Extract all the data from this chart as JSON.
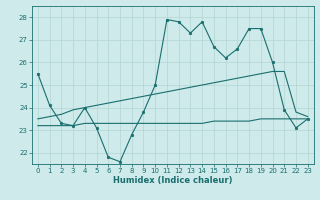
{
  "xlabel": "Humidex (Indice chaleur)",
  "background_color": "#ceeaea",
  "grid_color": "#b8d8d8",
  "line_color": "#1a6e6e",
  "xlim": [
    -0.5,
    23.5
  ],
  "ylim": [
    21.5,
    28.5
  ],
  "yticks": [
    22,
    23,
    24,
    25,
    26,
    27,
    28
  ],
  "xticks": [
    0,
    1,
    2,
    3,
    4,
    5,
    6,
    7,
    8,
    9,
    10,
    11,
    12,
    13,
    14,
    15,
    16,
    17,
    18,
    19,
    20,
    21,
    22,
    23
  ],
  "series1_x": [
    0,
    1,
    2,
    3,
    4,
    5,
    6,
    7,
    8,
    9,
    10,
    11,
    12,
    13,
    14,
    15,
    16,
    17,
    18,
    19,
    20,
    21,
    22,
    23
  ],
  "series1_y": [
    25.5,
    24.1,
    23.3,
    23.2,
    24.0,
    23.1,
    21.8,
    21.6,
    22.8,
    23.8,
    25.0,
    27.9,
    27.8,
    27.3,
    27.8,
    26.7,
    26.2,
    26.6,
    27.5,
    27.5,
    26.0,
    23.9,
    23.1,
    23.5
  ],
  "series2_x": [
    0,
    1,
    2,
    3,
    4,
    5,
    6,
    7,
    8,
    9,
    10,
    11,
    12,
    13,
    14,
    15,
    16,
    17,
    18,
    19,
    20,
    21,
    22,
    23
  ],
  "series2_y": [
    23.2,
    23.2,
    23.2,
    23.2,
    23.3,
    23.3,
    23.3,
    23.3,
    23.3,
    23.3,
    23.3,
    23.3,
    23.3,
    23.3,
    23.3,
    23.4,
    23.4,
    23.4,
    23.4,
    23.5,
    23.5,
    23.5,
    23.5,
    23.5
  ],
  "series3_x": [
    0,
    1,
    2,
    3,
    4,
    5,
    6,
    7,
    8,
    9,
    10,
    11,
    12,
    13,
    14,
    15,
    16,
    17,
    18,
    19,
    20,
    21,
    22,
    23
  ],
  "series3_y": [
    23.5,
    23.6,
    23.7,
    23.9,
    24.0,
    24.1,
    24.2,
    24.3,
    24.4,
    24.5,
    24.6,
    24.7,
    24.8,
    24.9,
    25.0,
    25.1,
    25.2,
    25.3,
    25.4,
    25.5,
    25.6,
    25.6,
    23.8,
    23.6
  ],
  "xlabel_fontsize": 6.0,
  "tick_fontsize": 5.0
}
